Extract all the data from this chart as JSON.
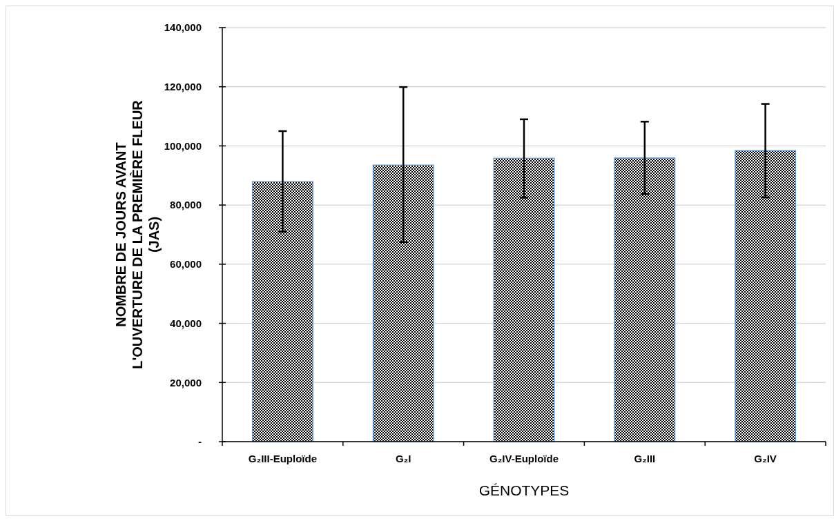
{
  "chart_data": {
    "type": "bar",
    "xlabel": "GÉNOTYPES",
    "ylabel": "NOMBRE DE JOURS AVANT\nL'OUVERTURE DE LA PREMIÈRE FLEUR\n(JAS)",
    "categories": [
      "G₂III-Euploïde",
      "G₂I",
      "G₂IV-Euploïde",
      "G₂III",
      "G₂IV"
    ],
    "values": [
      87900,
      93500,
      95800,
      95900,
      98400
    ],
    "errors": [
      [
        71000,
        105000
      ],
      [
        67500,
        119900
      ],
      [
        82500,
        109000
      ],
      [
        83700,
        108200
      ],
      [
        82600,
        114200
      ]
    ],
    "color": "#5b9bd5",
    "ylim": [
      0,
      140000
    ],
    "yticks": [
      {
        "value": 0,
        "label": "-"
      },
      {
        "value": 20000,
        "label": "20,000"
      },
      {
        "value": 40000,
        "label": "40,000"
      },
      {
        "value": 60000,
        "label": "60,000"
      },
      {
        "value": 80000,
        "label": "80,000"
      },
      {
        "value": 100000,
        "label": "100,000"
      },
      {
        "value": 120000,
        "label": "120,000"
      },
      {
        "value": 140000,
        "label": "140,000"
      }
    ],
    "grid": "y"
  }
}
